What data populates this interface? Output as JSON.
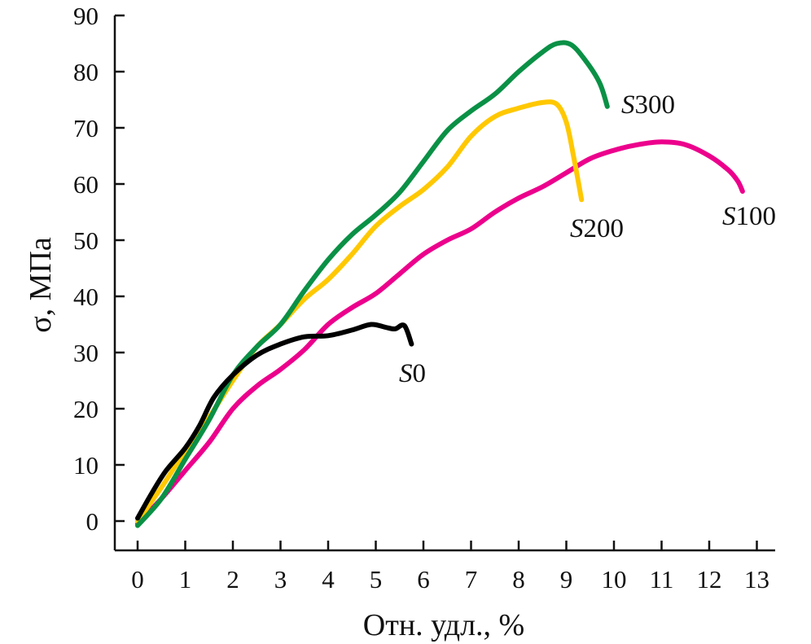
{
  "chart_data": {
    "type": "line",
    "title": "",
    "xlabel": "Отн. удл., %",
    "ylabel": "σ, МПа",
    "xlim": [
      0,
      13
    ],
    "ylim": [
      0,
      90
    ],
    "xticks": [
      "0",
      "1",
      "2",
      "3",
      "4",
      "5",
      "6",
      "7",
      "8",
      "9",
      "10",
      "11",
      "12",
      "13"
    ],
    "yticks": [
      "0",
      "10",
      "20",
      "30",
      "40",
      "50",
      "60",
      "70",
      "80",
      "90"
    ],
    "grid": false,
    "legend": "inline labels at curve ends",
    "series": [
      {
        "name": "S0",
        "label_prefix": "S",
        "label_suffix": "0",
        "color": "#000000",
        "x": [
          0,
          0.3,
          0.6,
          1,
          1.3,
          1.6,
          2,
          2.5,
          3,
          3.5,
          4,
          4.5,
          4.9,
          5.2,
          5.4,
          5.6,
          5.75
        ],
        "y": [
          0.5,
          5,
          9,
          13,
          17,
          22,
          26,
          29.5,
          31.5,
          32.8,
          33,
          34,
          35,
          34.5,
          34.2,
          34.8,
          31.5
        ]
      },
      {
        "name": "S100",
        "label_prefix": "S",
        "label_suffix": "100",
        "color": "#ec008c",
        "x": [
          0,
          0.5,
          1,
          1.5,
          2,
          2.5,
          3,
          3.5,
          4,
          4.5,
          5,
          5.5,
          6,
          6.5,
          7,
          7.5,
          8,
          8.5,
          9,
          9.5,
          10,
          10.5,
          11,
          11.5,
          12,
          12.4,
          12.6,
          12.7
        ],
        "y": [
          -0.5,
          4,
          9,
          14,
          20,
          24,
          27,
          30.5,
          35,
          38,
          40.5,
          44,
          47.5,
          50,
          52,
          55,
          57.5,
          59.5,
          62,
          64.5,
          66,
          67,
          67.5,
          67,
          65,
          62.5,
          60.5,
          58.7
        ]
      },
      {
        "name": "S200",
        "label_prefix": "S",
        "label_suffix": "200",
        "color": "#ffc800",
        "x": [
          0,
          0.5,
          1,
          1.5,
          2,
          2.5,
          3,
          3.5,
          4,
          4.5,
          5,
          5.5,
          6,
          6.5,
          7,
          7.5,
          8,
          8.5,
          8.8,
          9.0,
          9.15,
          9.32
        ],
        "y": [
          0,
          6,
          12.5,
          18.5,
          25,
          31,
          35,
          39.5,
          43,
          47.5,
          52.5,
          56,
          59,
          63,
          68.5,
          72,
          73.5,
          74.5,
          74.2,
          71,
          65,
          57.2
        ]
      },
      {
        "name": "S300",
        "label_prefix": "S",
        "label_suffix": "300",
        "color": "#0a9146",
        "x": [
          0,
          0.5,
          1,
          1.5,
          2,
          2.5,
          3,
          3.5,
          4,
          4.5,
          5,
          5.5,
          6,
          6.5,
          7,
          7.5,
          8,
          8.5,
          8.8,
          9.1,
          9.4,
          9.7,
          9.86
        ],
        "y": [
          -0.8,
          4,
          11,
          18,
          26,
          31,
          35,
          41,
          46.5,
          51,
          54.5,
          58.5,
          64,
          69.5,
          73,
          76,
          80,
          83.5,
          85,
          84.8,
          82,
          78,
          73.8
        ]
      }
    ]
  }
}
